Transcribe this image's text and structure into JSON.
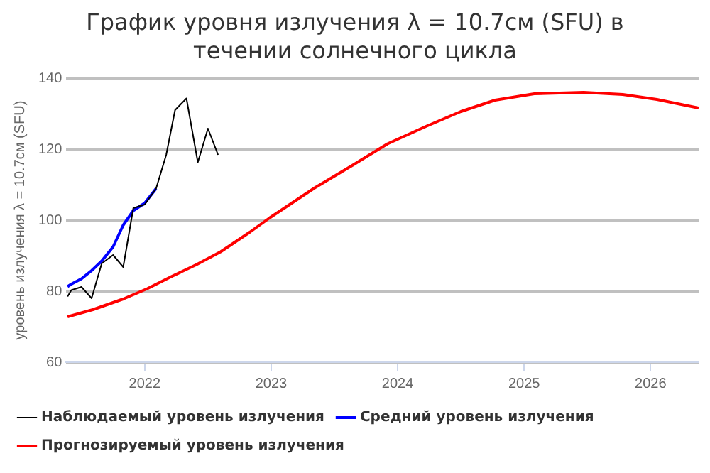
{
  "chart_data": {
    "type": "line",
    "title": "График уровня излучения λ = 10.7см (SFU) в течении солнечного цикла",
    "ylabel": "уровень излучения λ = 10.7см (SFU)",
    "xlim": [
      2021.38,
      2026.38
    ],
    "xticks": [
      2022,
      2023,
      2024,
      2025,
      2026
    ],
    "ylim": [
      60,
      140
    ],
    "yticks": [
      60,
      80,
      100,
      120,
      140
    ],
    "grid": "y",
    "legend": "bottom",
    "marker": "none",
    "line_style": "solid",
    "series": [
      {
        "name": "Наблюдаемый уровень излучения",
        "color": "#000000",
        "x": [
          2021.39,
          2021.42,
          2021.5,
          2021.58,
          2021.66,
          2021.75,
          2021.83,
          2021.91,
          2022.0,
          2022.09,
          2022.17,
          2022.24,
          2022.33,
          2022.42,
          2022.5,
          2022.58
        ],
        "values": [
          78.5,
          80.3,
          81.2,
          78.0,
          87.8,
          90.2,
          86.8,
          103.4,
          104.4,
          108.9,
          118.4,
          131.0,
          134.3,
          116.3,
          125.8,
          118.4
        ]
      },
      {
        "name": "Средний уровень излучения",
        "color": "#0000ff",
        "x": [
          2021.39,
          2021.42,
          2021.5,
          2021.58,
          2021.66,
          2021.75,
          2021.83,
          2021.91,
          2022.0,
          2022.09
        ],
        "values": [
          81.3,
          82.0,
          83.5,
          85.8,
          88.5,
          92.5,
          98.6,
          102.7,
          104.8,
          108.9
        ]
      },
      {
        "name": "Прогнозируемый уровень излучения",
        "color": "#ff0000",
        "x": [
          2021.39,
          2021.59,
          2021.83,
          2022.02,
          2022.21,
          2022.41,
          2022.6,
          2022.83,
          2022.99,
          2023.34,
          2023.65,
          2023.92,
          2024.23,
          2024.5,
          2024.77,
          2025.08,
          2025.47,
          2025.78,
          2026.05,
          2026.38
        ],
        "values": [
          72.8,
          74.8,
          77.8,
          80.7,
          84.1,
          87.5,
          91.1,
          96.6,
          100.7,
          109.0,
          115.6,
          121.5,
          126.5,
          130.6,
          133.8,
          135.6,
          136.0,
          135.4,
          134.0,
          131.6
        ]
      }
    ]
  }
}
